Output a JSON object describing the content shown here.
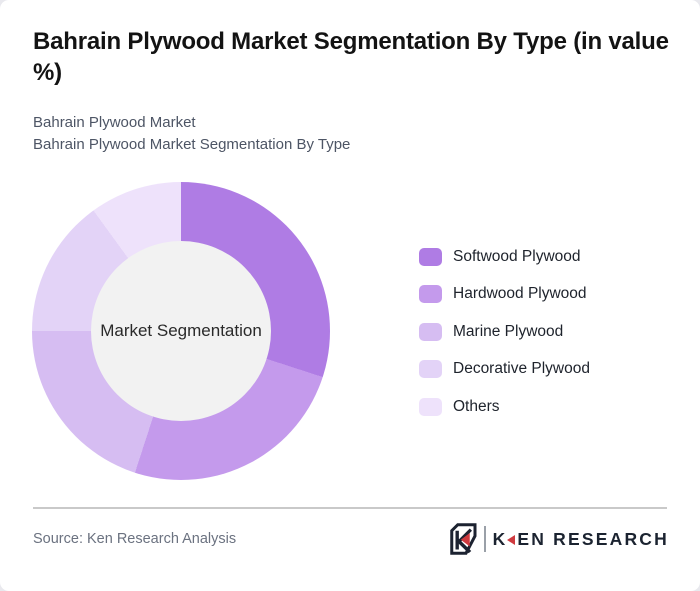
{
  "header": {
    "title": "Bahrain Plywood Market Segmentation By Type (in value %)",
    "subtitle_line1": "Bahrain Plywood Market",
    "subtitle_line2": "Bahrain Plywood Market Segmentation By Type"
  },
  "chart_data": {
    "type": "pie",
    "variant": "donut",
    "title": "Bahrain Plywood Market Segmentation By Type (in value %)",
    "center_label": "Market Segmentation",
    "categories": [
      "Softwood Plywood",
      "Hardwood Plywood",
      "Marine Plywood",
      "Decorative Plywood",
      "Others"
    ],
    "values": [
      30,
      25,
      20,
      15,
      10
    ],
    "unit": "value %",
    "colors": [
      "#af7ce4",
      "#c49aec",
      "#d6bdf2",
      "#e3d3f7",
      "#eee2fb"
    ],
    "hole_color": "#f2f2f2",
    "start_angle_deg": 0,
    "legend_position": "right"
  },
  "footer": {
    "source": "Source: Ken Research Analysis",
    "logo": {
      "emblem_icon": "ken-research-shield-k",
      "text_k": "K",
      "text_rest": "EN RESEARCH",
      "accent_color": "#cf3a3f",
      "text_color": "#1b2330"
    }
  }
}
